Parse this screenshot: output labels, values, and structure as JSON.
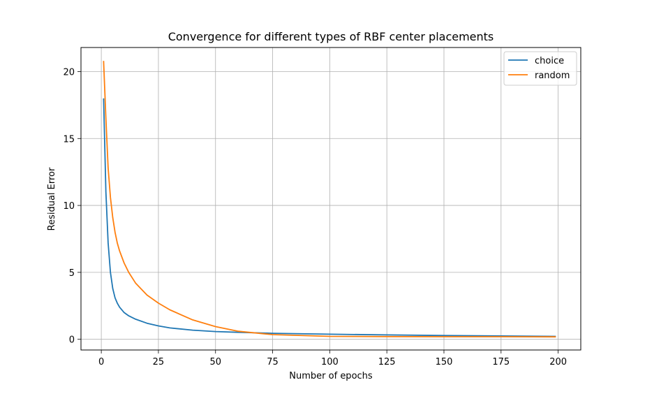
{
  "chart_data": {
    "type": "line",
    "title": "Convergence for different types of RBF center placements",
    "xlabel": "Number of epochs",
    "ylabel": "Residual Error",
    "xlim": [
      -8.9,
      209.9
    ],
    "ylim": [
      -0.8,
      21.8
    ],
    "xticks": [
      0,
      25,
      50,
      75,
      100,
      125,
      150,
      175,
      200
    ],
    "yticks": [
      0,
      5,
      10,
      15,
      20
    ],
    "grid": true,
    "legend_position": "top-right",
    "series": [
      {
        "name": "choice",
        "color": "#1f77b4",
        "x": [
          1,
          2,
          3,
          4,
          5,
          6,
          7,
          8,
          10,
          12,
          15,
          20,
          25,
          30,
          40,
          50,
          60,
          75,
          100,
          125,
          150,
          175,
          199
        ],
        "y": [
          18.0,
          11.0,
          7.2,
          5.0,
          3.8,
          3.1,
          2.7,
          2.4,
          2.0,
          1.75,
          1.5,
          1.2,
          1.0,
          0.85,
          0.68,
          0.58,
          0.52,
          0.45,
          0.38,
          0.33,
          0.28,
          0.25,
          0.22
        ]
      },
      {
        "name": "random",
        "color": "#ff7f0e",
        "x": [
          1,
          2,
          3,
          4,
          5,
          6,
          7,
          8,
          10,
          12,
          15,
          20,
          25,
          30,
          40,
          50,
          60,
          75,
          100,
          125,
          150,
          175,
          199
        ],
        "y": [
          20.8,
          16.5,
          12.8,
          10.6,
          9.1,
          8.0,
          7.2,
          6.6,
          5.7,
          5.0,
          4.2,
          3.3,
          2.7,
          2.2,
          1.45,
          0.95,
          0.6,
          0.35,
          0.22,
          0.2,
          0.19,
          0.19,
          0.18
        ]
      }
    ]
  }
}
